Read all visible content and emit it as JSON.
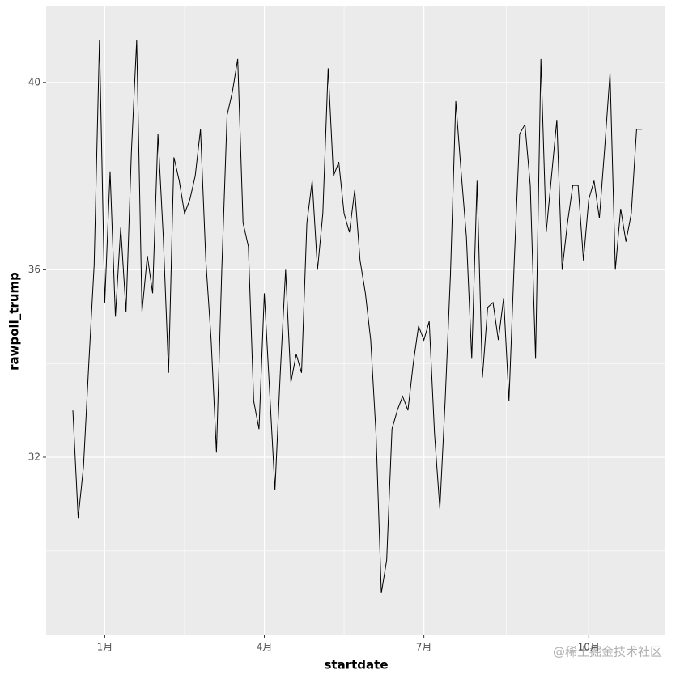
{
  "chart_data": {
    "type": "line",
    "x_label": "startdate",
    "y_label": "rawpoll_trump",
    "watermark": "@稀土掘金技术社区",
    "categories": [
      null,
      null,
      null,
      null,
      null,
      null,
      "1月",
      null,
      null,
      null,
      null,
      null,
      null,
      null,
      null,
      null,
      null,
      null,
      null,
      null,
      null,
      null,
      null,
      null,
      null,
      null,
      null,
      null,
      null,
      null,
      null,
      null,
      null,
      null,
      null,
      null,
      "4月",
      null,
      null,
      null,
      null,
      null,
      null,
      null,
      null,
      null,
      null,
      null,
      null,
      null,
      null,
      null,
      null,
      null,
      null,
      null,
      null,
      null,
      null,
      null,
      null,
      null,
      null,
      null,
      null,
      null,
      "7月",
      null,
      null,
      null,
      null,
      null,
      null,
      null,
      null,
      null,
      null,
      null,
      null,
      null,
      null,
      null,
      null,
      null,
      null,
      null,
      null,
      null,
      null,
      null,
      null,
      null,
      null,
      null,
      null,
      null,
      null,
      "10月",
      null,
      null,
      null,
      null,
      null,
      null,
      null,
      null,
      null,
      null
    ],
    "values": [
      33.0,
      30.7,
      31.8,
      34.0,
      36.1,
      40.9,
      35.3,
      38.1,
      35.0,
      36.9,
      35.1,
      38.5,
      40.9,
      35.1,
      36.3,
      35.5,
      38.9,
      36.7,
      33.8,
      38.4,
      37.9,
      37.2,
      37.5,
      38.0,
      39.0,
      36.2,
      34.5,
      32.1,
      36.0,
      39.3,
      39.8,
      40.5,
      37.0,
      36.5,
      33.2,
      32.6,
      35.5,
      33.4,
      31.3,
      33.8,
      36.0,
      33.6,
      34.2,
      33.8,
      37.0,
      37.9,
      36.0,
      37.2,
      40.3,
      38.0,
      38.3,
      37.2,
      36.8,
      37.7,
      36.2,
      35.5,
      34.5,
      32.5,
      29.1,
      29.8,
      32.6,
      33.0,
      33.3,
      33.0,
      34.0,
      34.8,
      34.5,
      34.9,
      32.5,
      30.9,
      33.2,
      35.9,
      39.6,
      38.1,
      36.7,
      34.1,
      37.9,
      33.7,
      35.2,
      35.3,
      34.5,
      35.4,
      33.2,
      36.2,
      38.9,
      39.1,
      37.8,
      34.1,
      40.5,
      36.8,
      38.0,
      39.2,
      36.0,
      37.0,
      37.8,
      37.8,
      36.2,
      37.5,
      37.9,
      37.1,
      38.6,
      40.2,
      36.0,
      37.3,
      36.6,
      37.2,
      39.0,
      39.0
    ],
    "color": "#000000",
    "ylim": [
      28.2,
      41.62
    ],
    "yticks": [
      32,
      36,
      40
    ],
    "grid": true
  }
}
